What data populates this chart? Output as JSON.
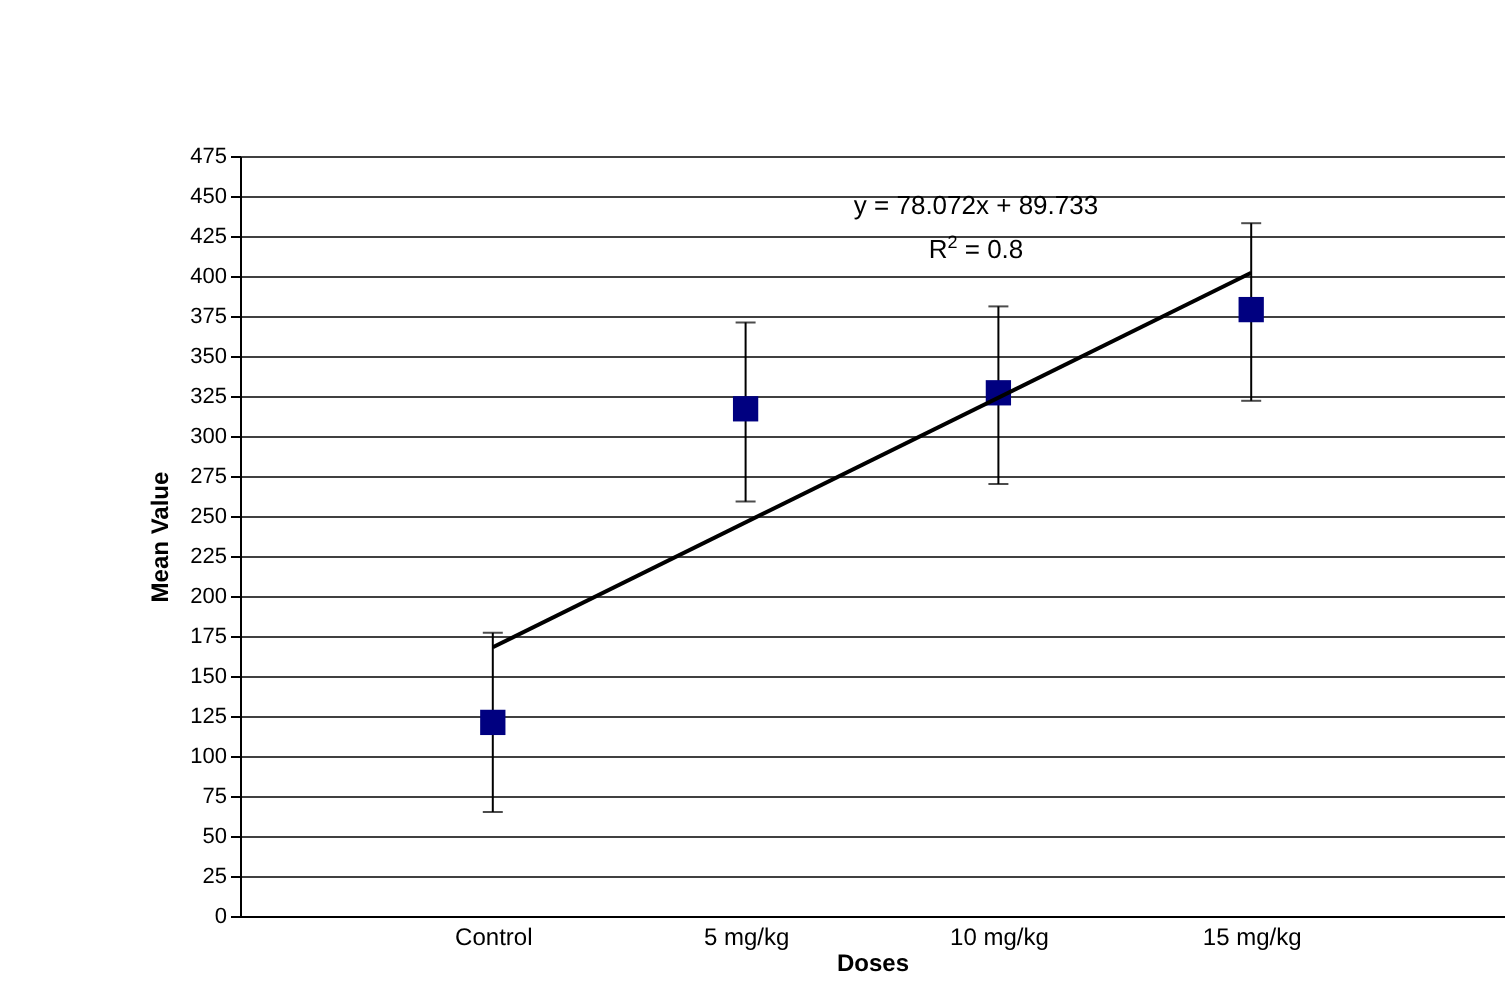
{
  "chart_data": {
    "type": "scatter",
    "xlabel": "Doses",
    "ylabel": "Mean Value",
    "categories": [
      "Control",
      "5 mg/kg",
      "10 mg/kg",
      "15 mg/kg"
    ],
    "series": [
      {
        "color": "#000080",
        "marker": "square",
        "values": [
          121,
          317,
          327,
          379
        ],
        "errors": [
          [
            65,
            177
          ],
          [
            259,
            371
          ],
          [
            270,
            381
          ],
          [
            322,
            433
          ]
        ]
      },
      {
        "type": "line",
        "marker": "none",
        "color": "#000000",
        "x": [
          "Control",
          "15 mg/kg"
        ],
        "values": [
          168,
          402
        ]
      }
    ],
    "annotations": [
      "y = 78.072x + 89.733",
      "R$^{2}$ = 0.8"
    ],
    "ylim": [
      0,
      475
    ],
    "yticks": [
      0,
      25,
      50,
      75,
      100,
      125,
      150,
      175,
      200,
      225,
      250,
      275,
      300,
      325,
      350,
      375,
      400,
      425,
      450,
      475
    ],
    "grid": "y",
    "line_style": "solid"
  }
}
